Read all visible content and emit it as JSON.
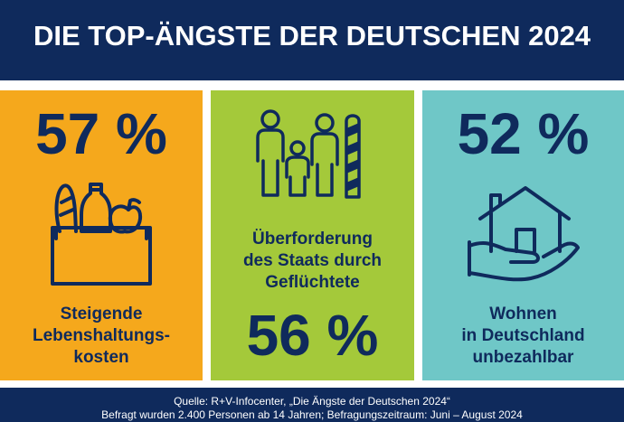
{
  "header": {
    "title": "DIE TOP-ÄNGSTE DER DEUTSCHEN 2024"
  },
  "panels": [
    {
      "value": "57 %",
      "label_lines": [
        "Steigende",
        "Lebenshaltungs-",
        "kosten"
      ],
      "icon": "grocery-bag-icon",
      "color": "#f5a81c"
    },
    {
      "value": "56 %",
      "label_lines": [
        "Überforderung",
        "des Staats durch",
        "Geflüchtete"
      ],
      "icon": "refugee-family-border-icon",
      "color": "#a4c93a"
    },
    {
      "value": "52 %",
      "label_lines": [
        "Wohnen",
        "in Deutschland",
        "unbezahlbar"
      ],
      "icon": "house-in-hand-icon",
      "color": "#6fc7c7"
    }
  ],
  "footer": {
    "source": "Quelle: R+V-Infocenter, „Die Ängste der Deutschen 2024“",
    "survey": "Befragt wurden 2.400 Personen ab 14 Jahren; Befragungszeitraum: Juni – August 2024"
  },
  "colors": {
    "navy": "#0f2a5c",
    "white": "#ffffff"
  }
}
